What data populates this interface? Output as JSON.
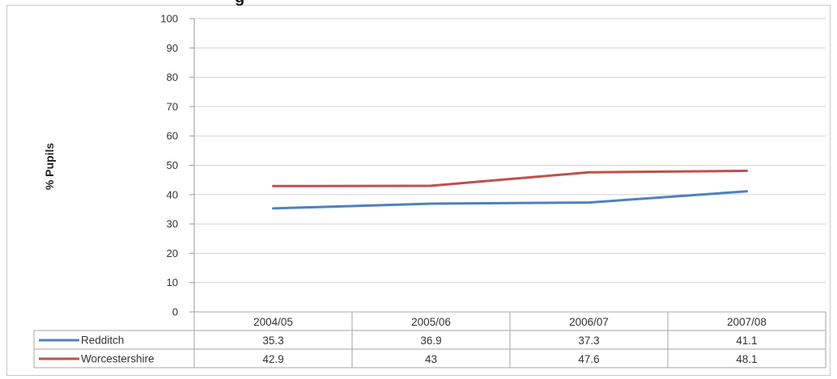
{
  "chart_data": {
    "type": "line",
    "title": "",
    "title_fragment": "g",
    "xlabel": "",
    "ylabel": "% Pupils",
    "ylim": [
      0,
      100
    ],
    "yticks": [
      0,
      10,
      20,
      30,
      40,
      50,
      60,
      70,
      80,
      90,
      100
    ],
    "categories": [
      "2004/05",
      "2005/06",
      "2006/07",
      "2007/08"
    ],
    "grid": true,
    "legend_placement": "data-table",
    "series": [
      {
        "name": "Redditch",
        "color": "#4f81bd",
        "values": [
          35.3,
          36.9,
          37.3,
          41.1
        ],
        "labels": [
          "35.3",
          "36.9",
          "37.3",
          "41.1"
        ]
      },
      {
        "name": "Worcestershire",
        "color": "#c0504d",
        "values": [
          42.9,
          43,
          47.6,
          48.1
        ],
        "labels": [
          "42.9",
          "43",
          "47.6",
          "48.1"
        ]
      }
    ]
  }
}
